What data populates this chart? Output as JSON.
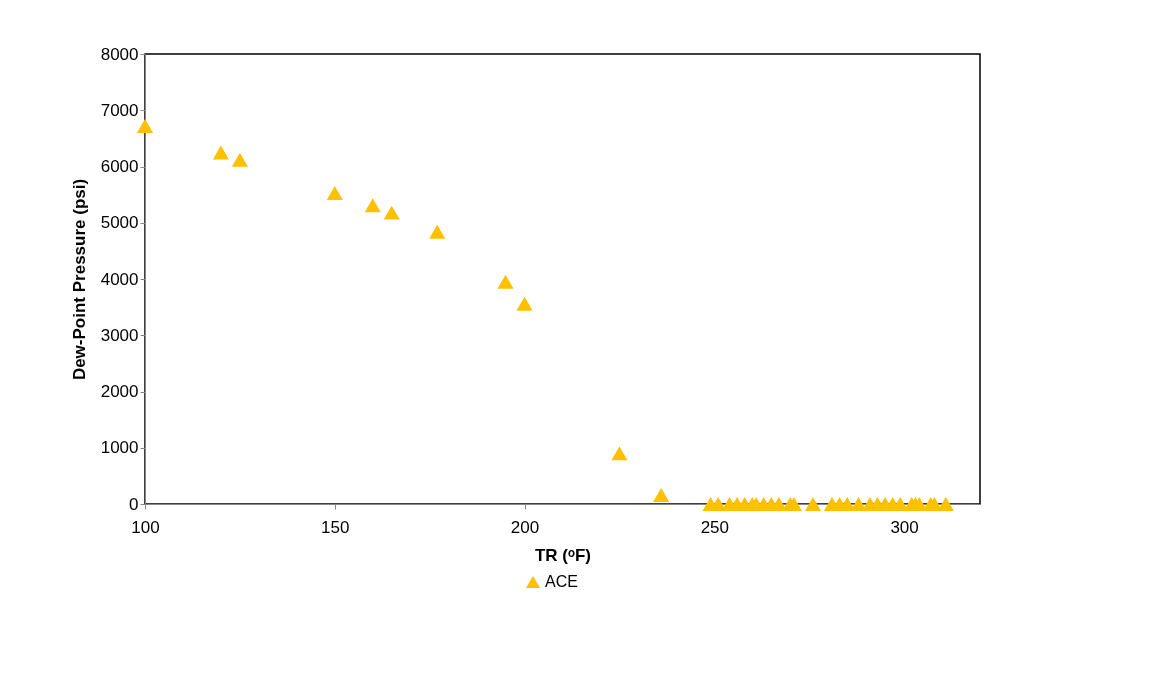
{
  "chart_data": {
    "type": "scatter",
    "xlabel": "TR (ᵒF)",
    "ylabel": "Dew-Point Pressure (psi)",
    "xlim": [
      100,
      320
    ],
    "xticks": [
      100,
      150,
      200,
      250,
      300
    ],
    "ylim": [
      0,
      8000
    ],
    "yticks": [
      0,
      1000,
      2000,
      3000,
      4000,
      5000,
      6000,
      7000,
      8000
    ],
    "grid": false,
    "legend": "bottom",
    "marker": "triangle",
    "series": [
      {
        "name": "ACE",
        "color": "#ffc000",
        "x": [
          100,
          120,
          125,
          150,
          160,
          165,
          177,
          195,
          200,
          225,
          236,
          249,
          251,
          254,
          256,
          258,
          260,
          261,
          263,
          265,
          267,
          270,
          271,
          276,
          281,
          283,
          285,
          288,
          291,
          293,
          295,
          297,
          299,
          302,
          303,
          304,
          307,
          308,
          311
        ],
        "values": [
          6720,
          6250,
          6120,
          5530,
          5310,
          5180,
          4840,
          3950,
          3560,
          900,
          160,
          0,
          0,
          0,
          0,
          0,
          0,
          0,
          0,
          0,
          0,
          0,
          0,
          0,
          0,
          0,
          0,
          0,
          0,
          0,
          0,
          0,
          0,
          0,
          0,
          0,
          0,
          0,
          0
        ]
      }
    ]
  }
}
